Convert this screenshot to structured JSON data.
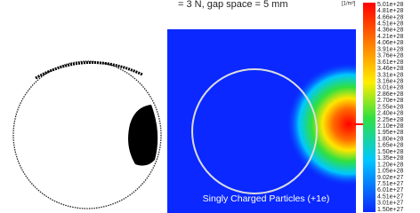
{
  "header": {
    "title": "= 3 N, gap space = 5 mm"
  },
  "right_panel": {
    "caption": "Singly Charged Particles (+1e)"
  },
  "colorbar": {
    "unit": "[1/m³]",
    "labels": [
      "5.01e+28",
      "4.81e+28",
      "4.66e+28",
      "4.51e+28",
      "4.36e+28",
      "4.21e+28",
      "4.06e+28",
      "3.91e+28",
      "3.76e+28",
      "3.61e+28",
      "3.46e+28",
      "3.31e+28",
      "3.16e+28",
      "3.01e+28",
      "2.86e+28",
      "2.70e+28",
      "2.55e+28",
      "2.40e+28",
      "2.25e+28",
      "2.10e+28",
      "1.95e+28",
      "1.80e+28",
      "1.65e+28",
      "1.50e+28",
      "1.35e+28",
      "1.20e+28",
      "1.05e+28",
      "9.02e+27",
      "7.51e+27",
      "6.01e+27",
      "4.51e+27",
      "3.01e+27",
      "1.50e+27"
    ]
  }
}
